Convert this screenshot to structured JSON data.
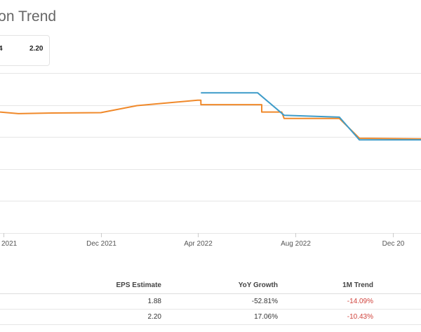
{
  "title": "sion Trend",
  "legend": {
    "item1": "4",
    "item2": "2.20"
  },
  "colors": {
    "orange": "#f0892a",
    "blue": "#3e9cc9",
    "grid": "#e6e6e6",
    "negative": "#d0433c"
  },
  "chart_data": {
    "type": "line",
    "title": "sion Trend",
    "xlabel": "",
    "ylabel": "",
    "x_ticks": [
      "2021",
      "Dec 2021",
      "Apr 2022",
      "Aug 2022",
      "Dec 20"
    ],
    "x_range": [
      "2021-07-28",
      "2023-01-05"
    ],
    "y_range": [
      0,
      5
    ],
    "grid": true,
    "series": [
      {
        "color": "#f0892a",
        "points": [
          [
            "2021-07-28",
            3.78
          ],
          [
            "2021-08-20",
            3.73
          ],
          [
            "2021-10-01",
            3.75
          ],
          [
            "2021-12-01",
            3.76
          ],
          [
            "2022-01-15",
            3.98
          ],
          [
            "2022-04-01",
            4.15
          ],
          [
            "2022-04-05",
            4.15
          ],
          [
            "2022-04-05",
            4.01
          ],
          [
            "2022-06-20",
            4.01
          ],
          [
            "2022-06-20",
            3.78
          ],
          [
            "2022-07-15",
            3.78
          ],
          [
            "2022-07-18",
            3.58
          ],
          [
            "2022-09-25",
            3.58
          ],
          [
            "2022-10-20",
            2.96
          ],
          [
            "2023-01-05",
            2.94
          ]
        ]
      },
      {
        "color": "#3e9cc9",
        "points": [
          [
            "2022-04-05",
            4.38
          ],
          [
            "2022-06-15",
            4.38
          ],
          [
            "2022-07-18",
            3.68
          ],
          [
            "2022-09-25",
            3.62
          ],
          [
            "2022-10-20",
            2.91
          ],
          [
            "2023-01-05",
            2.91
          ]
        ]
      }
    ]
  },
  "table": {
    "headers": [
      "",
      "EPS Estimate",
      "YoY Growth",
      "1M Trend",
      ""
    ],
    "rows": [
      [
        "",
        "1.88",
        "-52.81%",
        "-14.09%",
        ""
      ],
      [
        "",
        "2.20",
        "17.06%",
        "-10.43%",
        ""
      ]
    ]
  }
}
